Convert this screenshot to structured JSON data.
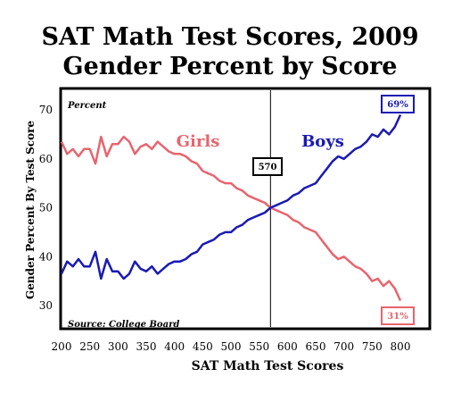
{
  "chart_data": {
    "type": "line",
    "title": "SAT Math Test Scores, 2009",
    "subtitle": "Gender Percent by Score",
    "xlabel": "SAT Math Test Scores",
    "ylabel": "Gender Percent By Test Score",
    "y_unit_note": "Percent",
    "source": "Source: College Board",
    "xlim": [
      200,
      800
    ],
    "ylim": [
      27,
      75
    ],
    "xticks": [
      200,
      250,
      300,
      350,
      400,
      450,
      500,
      550,
      600,
      650,
      700,
      750,
      800
    ],
    "yticks": [
      30,
      40,
      50,
      60,
      70
    ],
    "grid": false,
    "reference_line": {
      "x": 570,
      "label": "570"
    },
    "x": [
      200,
      210,
      220,
      230,
      240,
      250,
      260,
      270,
      280,
      290,
      300,
      310,
      320,
      330,
      340,
      350,
      360,
      370,
      380,
      390,
      400,
      410,
      420,
      430,
      440,
      450,
      460,
      470,
      480,
      490,
      500,
      510,
      520,
      530,
      540,
      550,
      560,
      570,
      580,
      590,
      600,
      610,
      620,
      630,
      640,
      650,
      660,
      670,
      680,
      690,
      700,
      710,
      720,
      730,
      740,
      750,
      760,
      770,
      780,
      790,
      800
    ],
    "series": [
      {
        "name": "Girls",
        "color": "#e8646e",
        "values": [
          63.5,
          61,
          62,
          60.5,
          62,
          62,
          59,
          64.5,
          60.5,
          63,
          63,
          64.5,
          63.5,
          61,
          62.5,
          63,
          62,
          63.5,
          62.5,
          61.5,
          61,
          61,
          60.5,
          59.5,
          59,
          57.5,
          57,
          56.5,
          55.5,
          55,
          55,
          54,
          53.5,
          52.5,
          52,
          51.5,
          51,
          50,
          49.5,
          49,
          48.5,
          47.5,
          47,
          46,
          45.5,
          45,
          43.5,
          42,
          40.5,
          39.5,
          40,
          39,
          38,
          37.5,
          36.5,
          35,
          35.5,
          34,
          35,
          33.5,
          31
        ]
      },
      {
        "name": "Boys",
        "color": "#1a1ab4",
        "values": [
          36.5,
          39,
          38,
          39.5,
          38,
          38,
          41,
          35.5,
          39.5,
          37,
          37,
          35.5,
          36.5,
          39,
          37.5,
          37,
          38,
          36.5,
          37.5,
          38.5,
          39,
          39,
          39.5,
          40.5,
          41,
          42.5,
          43,
          43.5,
          44.5,
          45,
          45,
          46,
          46.5,
          47.5,
          48,
          48.5,
          49,
          50,
          50.5,
          51,
          51.5,
          52.5,
          53,
          54,
          54.5,
          55,
          56.5,
          58,
          59.5,
          60.5,
          60,
          61,
          62,
          62.5,
          63.5,
          65,
          64.5,
          66,
          65,
          66.5,
          69
        ]
      }
    ],
    "end_labels": [
      {
        "series": "Boys",
        "text": "69%",
        "color": "#1a1ab4"
      },
      {
        "series": "Girls",
        "text": "31%",
        "color": "#e8646e"
      }
    ],
    "series_labels": [
      {
        "text": "Girls",
        "color": "#e8646e"
      },
      {
        "text": "Boys",
        "color": "#1a1ab4"
      }
    ]
  }
}
